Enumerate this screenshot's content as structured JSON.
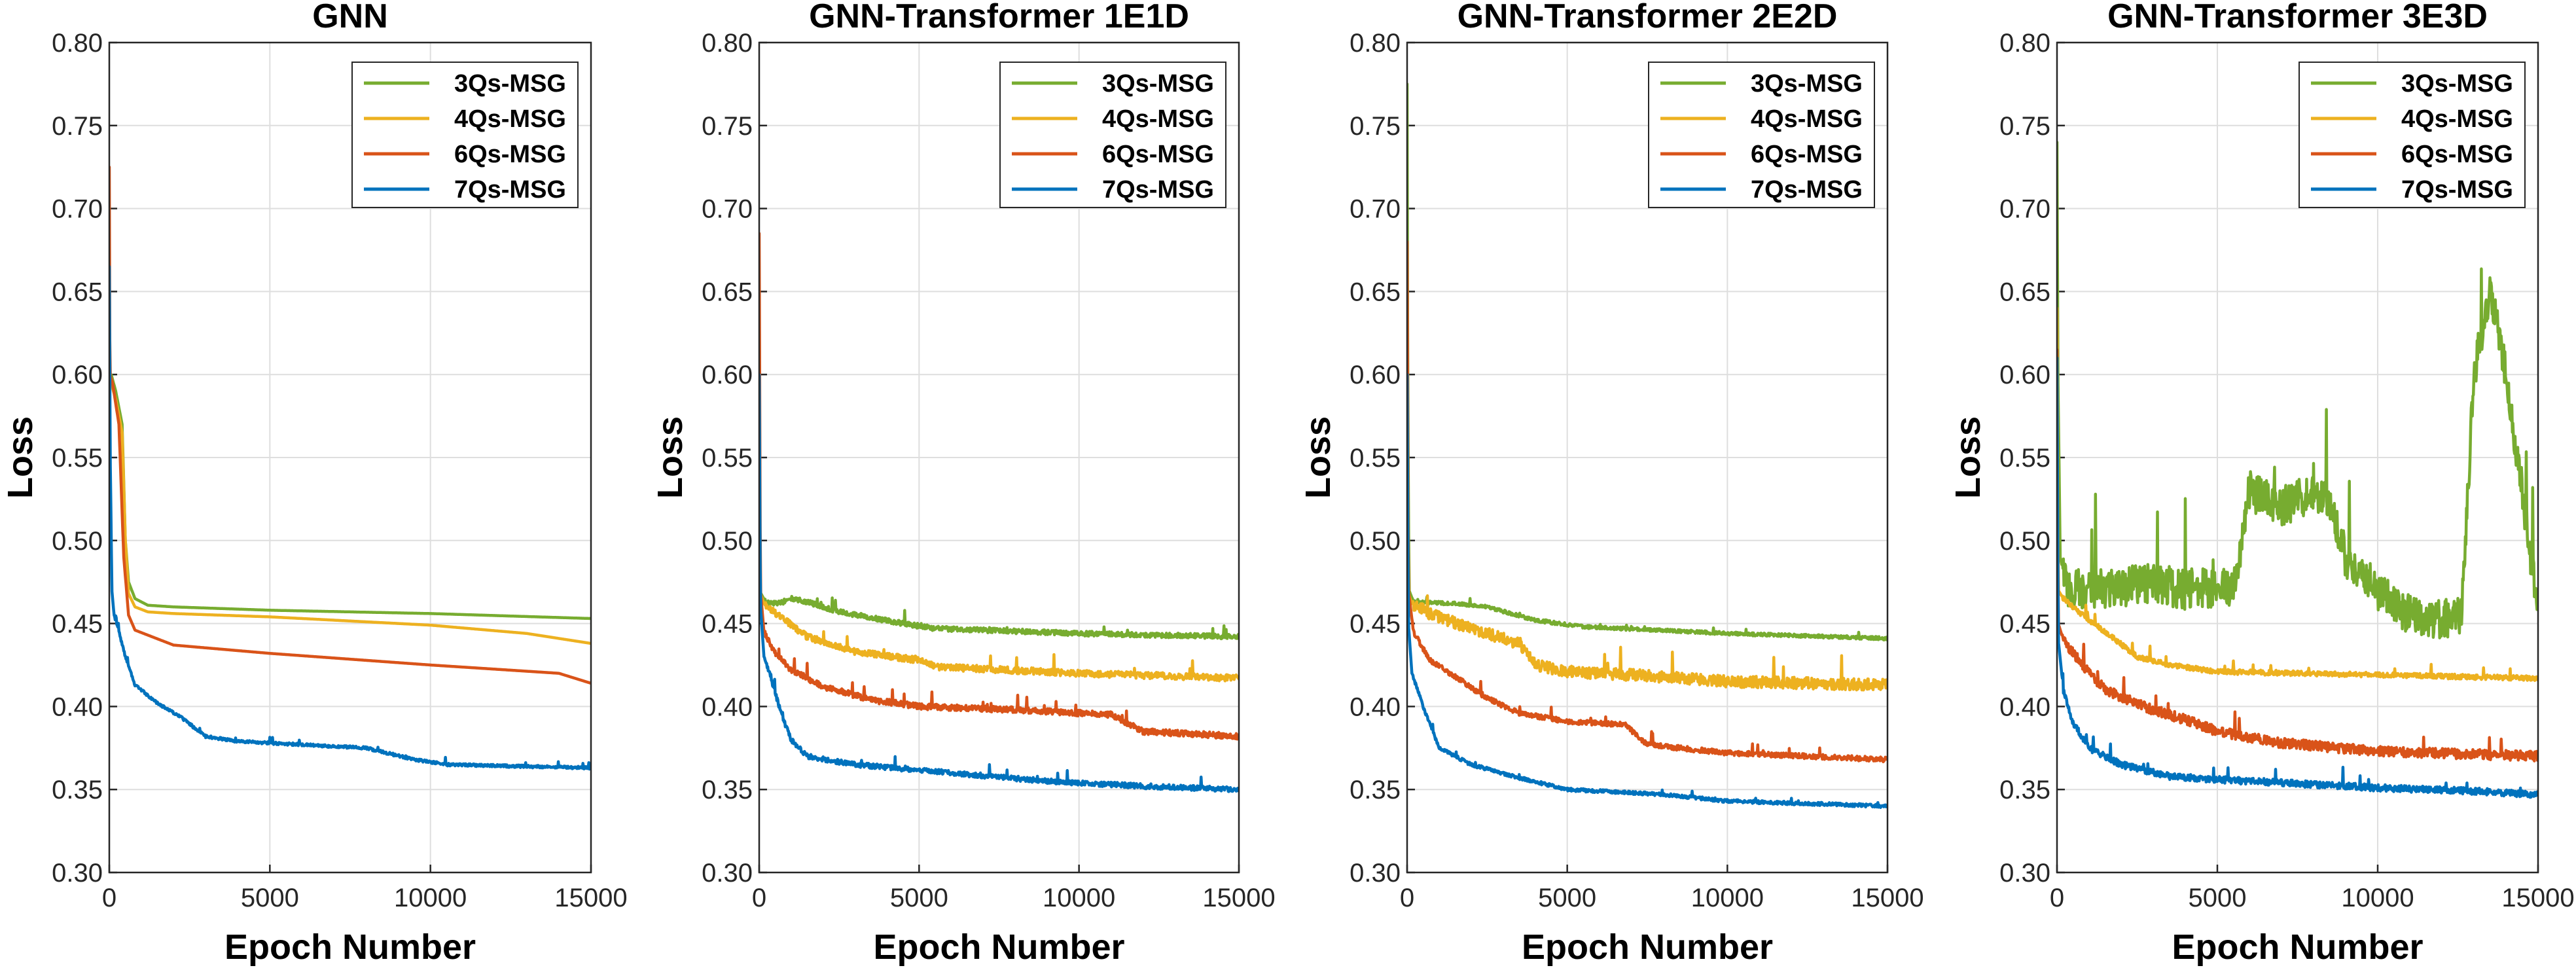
{
  "chart_data": [
    {
      "type": "line",
      "title": "GNN",
      "xlabel": "Epoch Number",
      "ylabel": "Loss",
      "xlim": [
        0,
        15000
      ],
      "ylim": [
        0.3,
        0.8
      ],
      "xticks": [
        "0",
        "5000",
        "10000",
        "15000"
      ],
      "yticks": [
        "0.30",
        "0.35",
        "0.40",
        "0.45",
        "0.50",
        "0.55",
        "0.60",
        "0.65",
        "0.70",
        "0.75",
        "0.80"
      ],
      "legend_position": "top-right",
      "grid": true,
      "series": [
        {
          "name": "3Qs-MSG",
          "color": "#77AC30",
          "noise": 0,
          "points": [
            [
              0,
              0.6
            ],
            [
              60,
              0.6
            ],
            [
              200,
              0.59
            ],
            [
              400,
              0.57
            ],
            [
              500,
              0.5
            ],
            [
              600,
              0.475
            ],
            [
              800,
              0.465
            ],
            [
              1200,
              0.461
            ],
            [
              2000,
              0.46
            ],
            [
              5000,
              0.458
            ],
            [
              10000,
              0.456
            ],
            [
              15000,
              0.453
            ]
          ]
        },
        {
          "name": "4Qs-MSG",
          "color": "#EDB120",
          "noise": 0,
          "points": [
            [
              0,
              0.6
            ],
            [
              60,
              0.595
            ],
            [
              200,
              0.585
            ],
            [
              400,
              0.565
            ],
            [
              500,
              0.5
            ],
            [
              600,
              0.468
            ],
            [
              800,
              0.46
            ],
            [
              1200,
              0.457
            ],
            [
              2000,
              0.456
            ],
            [
              5000,
              0.454
            ],
            [
              10000,
              0.449
            ],
            [
              13000,
              0.444
            ],
            [
              15000,
              0.438
            ]
          ]
        },
        {
          "name": "6Qs-MSG",
          "color": "#D95319",
          "noise": 0,
          "points": [
            [
              0,
              0.725
            ],
            [
              20,
              0.6
            ],
            [
              100,
              0.595
            ],
            [
              300,
              0.57
            ],
            [
              450,
              0.49
            ],
            [
              600,
              0.455
            ],
            [
              800,
              0.446
            ],
            [
              1200,
              0.443
            ],
            [
              2000,
              0.437
            ],
            [
              5000,
              0.432
            ],
            [
              10000,
              0.425
            ],
            [
              14000,
              0.42
            ],
            [
              15000,
              0.414
            ]
          ]
        },
        {
          "name": "7Qs-MSG",
          "color": "#0072BD",
          "noise": 0.0008,
          "points": [
            [
              0,
              0.665
            ],
            [
              30,
              0.55
            ],
            [
              80,
              0.47
            ],
            [
              150,
              0.455
            ],
            [
              300,
              0.445
            ],
            [
              500,
              0.43
            ],
            [
              800,
              0.413
            ],
            [
              1500,
              0.402
            ],
            [
              2200,
              0.394
            ],
            [
              3000,
              0.382
            ],
            [
              4000,
              0.379
            ],
            [
              6000,
              0.377
            ],
            [
              8000,
              0.375
            ],
            [
              9500,
              0.368
            ],
            [
              10500,
              0.365
            ],
            [
              15000,
              0.363
            ]
          ]
        }
      ]
    },
    {
      "type": "line",
      "title": "GNN-Transformer 1E1D",
      "xlabel": "Epoch Number",
      "ylabel": "Loss",
      "xlim": [
        0,
        15000
      ],
      "ylim": [
        0.3,
        0.8
      ],
      "xticks": [
        "0",
        "5000",
        "10000",
        "15000"
      ],
      "yticks": [
        "0.30",
        "0.35",
        "0.40",
        "0.45",
        "0.50",
        "0.55",
        "0.60",
        "0.65",
        "0.70",
        "0.75",
        "0.80"
      ],
      "legend_position": "top-right",
      "grid": true,
      "series": [
        {
          "name": "3Qs-MSG",
          "color": "#77AC30",
          "noise": 0.0015,
          "points": [
            [
              0,
              0.47
            ],
            [
              200,
              0.463
            ],
            [
              600,
              0.462
            ],
            [
              1000,
              0.465
            ],
            [
              1500,
              0.463
            ],
            [
              2500,
              0.457
            ],
            [
              4500,
              0.45
            ],
            [
              5500,
              0.447
            ],
            [
              10000,
              0.444
            ],
            [
              15000,
              0.442
            ]
          ]
        },
        {
          "name": "4Qs-MSG",
          "color": "#EDB120",
          "noise": 0.002,
          "points": [
            [
              0,
              0.47
            ],
            [
              150,
              0.462
            ],
            [
              600,
              0.455
            ],
            [
              1500,
              0.442
            ],
            [
              3000,
              0.433
            ],
            [
              5000,
              0.428
            ],
            [
              5500,
              0.424
            ],
            [
              10000,
              0.42
            ],
            [
              15000,
              0.417
            ]
          ]
        },
        {
          "name": "6Qs-MSG",
          "color": "#D95319",
          "noise": 0.0018,
          "points": [
            [
              0,
              0.685
            ],
            [
              40,
              0.47
            ],
            [
              150,
              0.445
            ],
            [
              500,
              0.432
            ],
            [
              1000,
              0.422
            ],
            [
              2000,
              0.412
            ],
            [
              3500,
              0.404
            ],
            [
              5000,
              0.4
            ],
            [
              8000,
              0.398
            ],
            [
              11000,
              0.395
            ],
            [
              12000,
              0.385
            ],
            [
              15000,
              0.382
            ]
          ]
        },
        {
          "name": "7Qs-MSG",
          "color": "#0072BD",
          "noise": 0.0015,
          "points": [
            [
              0,
              0.6
            ],
            [
              40,
              0.46
            ],
            [
              150,
              0.43
            ],
            [
              400,
              0.415
            ],
            [
              700,
              0.395
            ],
            [
              1000,
              0.38
            ],
            [
              1500,
              0.37
            ],
            [
              3000,
              0.365
            ],
            [
              6000,
              0.36
            ],
            [
              9000,
              0.355
            ],
            [
              12000,
              0.352
            ],
            [
              15000,
              0.35
            ]
          ]
        }
      ]
    },
    {
      "type": "line",
      "title": "GNN-Transformer 2E2D",
      "xlabel": "Epoch Number",
      "ylabel": "Loss",
      "xlim": [
        0,
        15000
      ],
      "ylim": [
        0.3,
        0.8
      ],
      "xticks": [
        "0",
        "5000",
        "10000",
        "15000"
      ],
      "yticks": [
        "0.30",
        "0.35",
        "0.40",
        "0.45",
        "0.50",
        "0.55",
        "0.60",
        "0.65",
        "0.70",
        "0.75",
        "0.80"
      ],
      "legend_position": "top-right",
      "grid": true,
      "series": [
        {
          "name": "3Qs-MSG",
          "color": "#77AC30",
          "noise": 0.001,
          "points": [
            [
              0,
              0.775
            ],
            [
              20,
              0.6
            ],
            [
              60,
              0.47
            ],
            [
              200,
              0.463
            ],
            [
              1500,
              0.462
            ],
            [
              2500,
              0.46
            ],
            [
              4000,
              0.452
            ],
            [
              5500,
              0.448
            ],
            [
              10000,
              0.444
            ],
            [
              15000,
              0.441
            ]
          ]
        },
        {
          "name": "4Qs-MSG",
          "color": "#EDB120",
          "noise": 0.0035,
          "points": [
            [
              0,
              0.47
            ],
            [
              150,
              0.462
            ],
            [
              800,
              0.455
            ],
            [
              2000,
              0.447
            ],
            [
              3500,
              0.438
            ],
            [
              4000,
              0.425
            ],
            [
              5000,
              0.421
            ],
            [
              8000,
              0.418
            ],
            [
              10000,
              0.415
            ],
            [
              15000,
              0.413
            ]
          ]
        },
        {
          "name": "6Qs-MSG",
          "color": "#D95319",
          "noise": 0.0015,
          "points": [
            [
              0,
              0.68
            ],
            [
              40,
              0.47
            ],
            [
              200,
              0.445
            ],
            [
              700,
              0.428
            ],
            [
              1500,
              0.418
            ],
            [
              2500,
              0.405
            ],
            [
              3500,
              0.396
            ],
            [
              5000,
              0.391
            ],
            [
              6800,
              0.389
            ],
            [
              7500,
              0.377
            ],
            [
              10000,
              0.372
            ],
            [
              15000,
              0.368
            ]
          ]
        },
        {
          "name": "7Qs-MSG",
          "color": "#0072BD",
          "noise": 0.001,
          "points": [
            [
              0,
              0.6
            ],
            [
              40,
              0.45
            ],
            [
              150,
              0.42
            ],
            [
              500,
              0.4
            ],
            [
              1000,
              0.375
            ],
            [
              2000,
              0.365
            ],
            [
              3500,
              0.357
            ],
            [
              5000,
              0.35
            ],
            [
              8000,
              0.347
            ],
            [
              10000,
              0.343
            ],
            [
              15000,
              0.34
            ]
          ]
        }
      ]
    },
    {
      "type": "line",
      "title": "GNN-Transformer 3E3D",
      "xlabel": "Epoch Number",
      "ylabel": "Loss",
      "xlim": [
        0,
        15000
      ],
      "ylim": [
        0.3,
        0.8
      ],
      "xticks": [
        "0",
        "5000",
        "10000",
        "15000"
      ],
      "yticks": [
        "0.30",
        "0.35",
        "0.40",
        "0.45",
        "0.50",
        "0.55",
        "0.60",
        "0.65",
        "0.70",
        "0.75",
        "0.80"
      ],
      "legend_position": "top-right",
      "grid": true,
      "series": [
        {
          "name": "3Qs-MSG",
          "color": "#77AC30",
          "noise": 0.012,
          "points": [
            [
              0,
              0.74
            ],
            [
              30,
              0.6
            ],
            [
              100,
              0.49
            ],
            [
              300,
              0.472
            ],
            [
              1000,
              0.47
            ],
            [
              2000,
              0.472
            ],
            [
              3000,
              0.475
            ],
            [
              4000,
              0.47
            ],
            [
              5000,
              0.472
            ],
            [
              5500,
              0.47
            ],
            [
              6000,
              0.53
            ],
            [
              7000,
              0.52
            ],
            [
              8000,
              0.53
            ],
            [
              8500,
              0.525
            ],
            [
              9000,
              0.49
            ],
            [
              10000,
              0.47
            ],
            [
              11000,
              0.455
            ],
            [
              12000,
              0.452
            ],
            [
              12600,
              0.455
            ],
            [
              13000,
              0.6
            ],
            [
              13500,
              0.65
            ],
            [
              14000,
              0.6
            ],
            [
              14500,
              0.53
            ],
            [
              15000,
              0.458
            ]
          ]
        },
        {
          "name": "4Qs-MSG",
          "color": "#EDB120",
          "noise": 0.0015,
          "points": [
            [
              0,
              0.64
            ],
            [
              40,
              0.47
            ],
            [
              200,
              0.465
            ],
            [
              800,
              0.455
            ],
            [
              1500,
              0.445
            ],
            [
              2500,
              0.43
            ],
            [
              3500,
              0.425
            ],
            [
              5000,
              0.421
            ],
            [
              10000,
              0.419
            ],
            [
              15000,
              0.417
            ]
          ]
        },
        {
          "name": "6Qs-MSG",
          "color": "#D95319",
          "noise": 0.003,
          "points": [
            [
              0,
              0.615
            ],
            [
              40,
              0.45
            ],
            [
              200,
              0.44
            ],
            [
              800,
              0.425
            ],
            [
              1500,
              0.41
            ],
            [
              3000,
              0.398
            ],
            [
              4000,
              0.392
            ],
            [
              5000,
              0.385
            ],
            [
              7000,
              0.378
            ],
            [
              10000,
              0.373
            ],
            [
              15000,
              0.37
            ]
          ]
        },
        {
          "name": "7Qs-MSG",
          "color": "#0072BD",
          "noise": 0.002,
          "points": [
            [
              0,
              0.61
            ],
            [
              40,
              0.44
            ],
            [
              200,
              0.41
            ],
            [
              500,
              0.39
            ],
            [
              1000,
              0.375
            ],
            [
              2000,
              0.365
            ],
            [
              3500,
              0.358
            ],
            [
              5000,
              0.356
            ],
            [
              8000,
              0.353
            ],
            [
              10000,
              0.351
            ],
            [
              13000,
              0.349
            ],
            [
              15000,
              0.347
            ]
          ]
        }
      ]
    }
  ]
}
